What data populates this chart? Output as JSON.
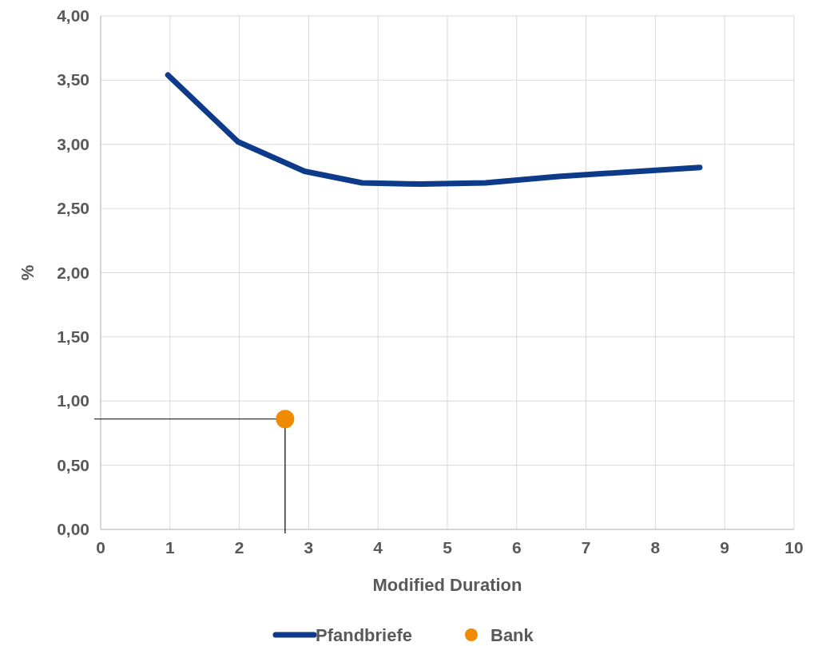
{
  "chart_data": {
    "type": "line",
    "xlabel": "Modified Duration",
    "ylabel": "%",
    "xlim": [
      0,
      10
    ],
    "xticks": [
      0,
      1,
      2,
      3,
      4,
      5,
      6,
      7,
      8,
      9,
      10
    ],
    "ylim": [
      0,
      4
    ],
    "yticks": [
      {
        "value": 0,
        "label": "0,00"
      },
      {
        "value": 0.5,
        "label": "0,50"
      },
      {
        "value": 1,
        "label": "1,00"
      },
      {
        "value": 1.5,
        "label": "1,50"
      },
      {
        "value": 2,
        "label": "2,00"
      },
      {
        "value": 2.5,
        "label": "2,50"
      },
      {
        "value": 3,
        "label": "3,00"
      },
      {
        "value": 3.5,
        "label": "3,50"
      },
      {
        "value": 4,
        "label": "4,00"
      }
    ],
    "grid": true,
    "legend": "bottom",
    "series": [
      {
        "name": "Pfandbriefe",
        "color": "#0e3a8a",
        "marker": "none",
        "x": [
          0.97,
          1.98,
          2.94,
          3.77,
          4.62,
          5.55,
          6.6,
          8.64
        ],
        "values": [
          3.54,
          3.02,
          2.79,
          2.7,
          2.69,
          2.7,
          2.75,
          2.82
        ]
      },
      {
        "name": "Bank",
        "type": "scatter",
        "color": "#f08a00",
        "marker": "circle",
        "x": [
          2.66
        ],
        "values": [
          0.86
        ]
      }
    ],
    "ref_lines": [
      {
        "axis": "x",
        "value": 2.66,
        "color": "#000000"
      },
      {
        "axis": "y",
        "value": 0.86,
        "color": "#000000"
      }
    ]
  }
}
